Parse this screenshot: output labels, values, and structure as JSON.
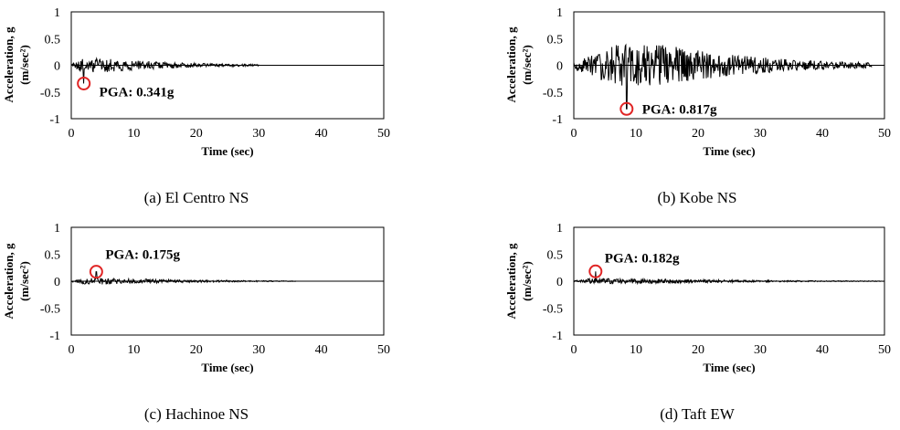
{
  "chart_data": [
    {
      "type": "line",
      "caption": "(a) El Centro NS",
      "xlabel": "Time (sec)",
      "ylabel": "Acceleration, g",
      "ylabel_unit": "(m/sec²)",
      "xlim": [
        0,
        50
      ],
      "ylim": [
        -1,
        1
      ],
      "xticks": [
        "0",
        "10",
        "20",
        "30",
        "40",
        "50"
      ],
      "yticks": [
        "1",
        "0.5",
        "0",
        "-0.5",
        "-1"
      ],
      "record": {
        "duration": 30,
        "amp_scale": 0.13,
        "peak_time": 2.0,
        "peak_value": -0.341,
        "strong_start": 1.0,
        "strong_end": 6.0
      },
      "pga": {
        "label": "PGA: 0.341g",
        "time": 2.0,
        "value": -0.341
      },
      "line_color": "#000000",
      "marker_color": "#e02424"
    },
    {
      "type": "line",
      "caption": "(b) Kobe NS",
      "xlabel": "Time (sec)",
      "ylabel": "Acceleration, g",
      "ylabel_unit": "(m/sec²)",
      "xlim": [
        0,
        50
      ],
      "ylim": [
        -1,
        1
      ],
      "xticks": [
        "0",
        "10",
        "20",
        "30",
        "40",
        "50"
      ],
      "yticks": [
        "1",
        "0.5",
        "0",
        "-0.5",
        "-1"
      ],
      "record": {
        "duration": 48,
        "amp_scale": 0.4,
        "peak_time": 8.5,
        "peak_value": -0.817,
        "strong_start": 7.0,
        "strong_end": 14.0
      },
      "pga": {
        "label": "PGA: 0.817g",
        "time": 8.5,
        "value": -0.817
      },
      "line_color": "#000000",
      "marker_color": "#e02424"
    },
    {
      "type": "line",
      "caption": "(c) Hachinoe NS",
      "xlabel": "Time (sec)",
      "ylabel": "Acceleration, g",
      "ylabel_unit": "(m/sec²)",
      "xlim": [
        0,
        50
      ],
      "ylim": [
        -1,
        1
      ],
      "xticks": [
        "0",
        "10",
        "20",
        "30",
        "40",
        "50"
      ],
      "yticks": [
        "1",
        "0.5",
        "0",
        "-0.5",
        "-1"
      ],
      "record": {
        "duration": 36,
        "amp_scale": 0.06,
        "peak_time": 4.0,
        "peak_value": 0.175,
        "strong_start": 2.5,
        "strong_end": 6.0
      },
      "pga": {
        "label": "PGA: 0.175g",
        "time": 4.0,
        "value": 0.175
      },
      "line_color": "#000000",
      "marker_color": "#e02424"
    },
    {
      "type": "line",
      "caption": "(d) Taft EW",
      "xlabel": "Time (sec)",
      "ylabel": "Acceleration, g",
      "ylabel_unit": "(m/sec²)",
      "xlim": [
        0,
        50
      ],
      "ylim": [
        -1,
        1
      ],
      "xticks": [
        "0",
        "10",
        "20",
        "30",
        "40",
        "50"
      ],
      "yticks": [
        "1",
        "0.5",
        "0",
        "-0.5",
        "-1"
      ],
      "record": {
        "duration": 50,
        "amp_scale": 0.05,
        "peak_time": 3.5,
        "peak_value": 0.182,
        "strong_start": 2.5,
        "strong_end": 10.0
      },
      "pga": {
        "label": "PGA: 0.182g",
        "time": 3.5,
        "value": 0.182
      },
      "line_color": "#000000",
      "marker_color": "#e02424"
    }
  ]
}
